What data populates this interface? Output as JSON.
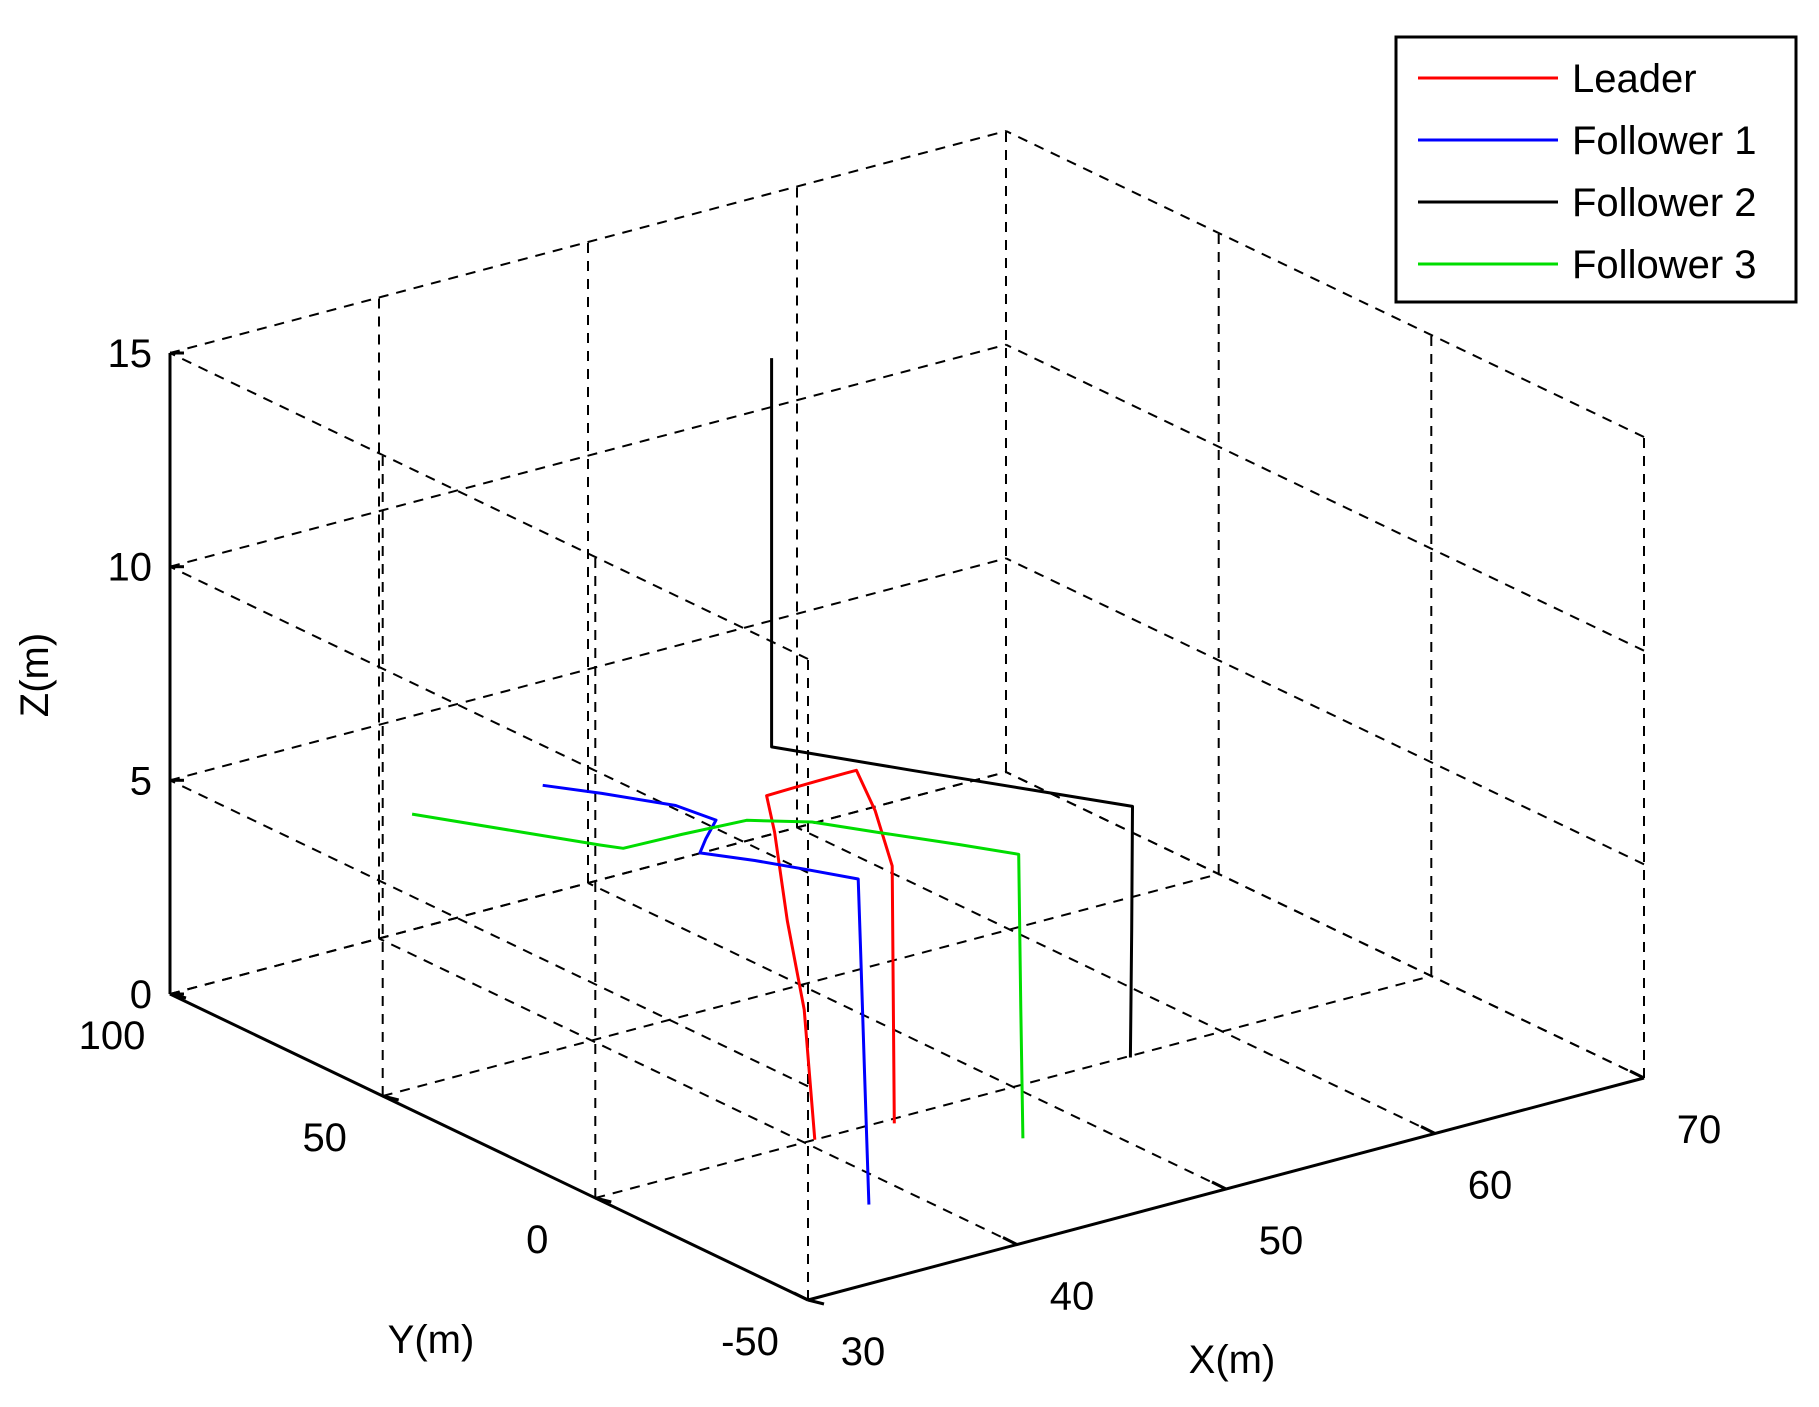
{
  "chart_data": {
    "type": "line3d",
    "title": "",
    "xlabel": "X(m)",
    "ylabel": "Y(m)",
    "zlabel": "Z(m)",
    "xlim": [
      30,
      70
    ],
    "ylim": [
      -50,
      100
    ],
    "zlim": [
      0,
      15
    ],
    "xticks": [
      30,
      40,
      50,
      60,
      70
    ],
    "yticks": [
      -50,
      0,
      50,
      100
    ],
    "zticks": [
      0,
      5,
      10,
      15
    ],
    "xtick_labels": [
      "30",
      "40",
      "50",
      "60",
      "70"
    ],
    "ytick_labels": [
      "-50",
      "0",
      "50",
      "100"
    ],
    "ztick_labels": [
      "0",
      "5",
      "10",
      "15"
    ],
    "grid": true,
    "legend_position": "top-right",
    "series": [
      {
        "name": "Leader",
        "color": "#ff0000",
        "points": [
          [
            40.5,
            0.0,
            0.0
          ],
          [
            40.3,
            1.5,
            3.0
          ],
          [
            40.0,
            4.0,
            5.0
          ],
          [
            39.8,
            6.0,
            7.0
          ],
          [
            39.7,
            7.4,
            7.8
          ],
          [
            40.8,
            7.6,
            7.8
          ],
          [
            42.2,
            7.8,
            7.8
          ],
          [
            43.6,
            7.9,
            7.8
          ],
          [
            44.1,
            7.9,
            7.8
          ],
          [
            44.0,
            3.0,
            7.1
          ],
          [
            44.0,
            -1.0,
            6.0
          ],
          [
            44.0,
            -1.5,
            0.0
          ]
        ]
      },
      {
        "name": "Follower 1",
        "color": "#0000ff",
        "points": [
          [
            38.0,
            -25.0,
            0.0
          ],
          [
            38.0,
            -24.0,
            3.0
          ],
          [
            38.0,
            -23.0,
            6.0
          ],
          [
            38.0,
            -22.5,
            7.5
          ],
          [
            37.0,
            -15.0,
            7.5
          ],
          [
            36.0,
            -8.0,
            7.5
          ],
          [
            34.8,
            -1.0,
            7.5
          ],
          [
            35.9,
            3.0,
            7.5
          ],
          [
            37.4,
            8.0,
            7.5
          ],
          [
            37.1,
            16.0,
            7.5
          ],
          [
            35.6,
            26.0,
            7.5
          ],
          [
            34.3,
            33.5,
            7.5
          ]
        ]
      },
      {
        "name": "Follower 2",
        "color": "#000000",
        "points": [
          [
            55.5,
            -0.5,
            0.0
          ],
          [
            55.5,
            -0.8,
            3.0
          ],
          [
            55.5,
            -1.0,
            5.9
          ],
          [
            53.4,
            13.0,
            5.9
          ],
          [
            51.0,
            29.0,
            5.9
          ],
          [
            48.2,
            48.0,
            5.9
          ],
          [
            48.2,
            48.0,
            9.0
          ],
          [
            48.2,
            48.0,
            13.0
          ],
          [
            48.2,
            48.0,
            15.0
          ]
        ]
      },
      {
        "name": "Follower 3",
        "color": "#00dd00",
        "points": [
          [
            47.0,
            -17.0,
            0.0
          ],
          [
            47.0,
            -16.5,
            3.0
          ],
          [
            47.0,
            -16.0,
            6.6
          ],
          [
            45.8,
            -8.0,
            6.6
          ],
          [
            44.1,
            2.5,
            6.6
          ],
          [
            42.7,
            11.5,
            6.6
          ],
          [
            40.8,
            17.5,
            6.6
          ],
          [
            37.9,
            18.5,
            6.6
          ],
          [
            35.2,
            19.0,
            6.6
          ],
          [
            34.7,
            22.0,
            6.6
          ],
          [
            33.2,
            32.0,
            6.6
          ],
          [
            30.9,
            47.5,
            6.6
          ]
        ]
      }
    ]
  }
}
